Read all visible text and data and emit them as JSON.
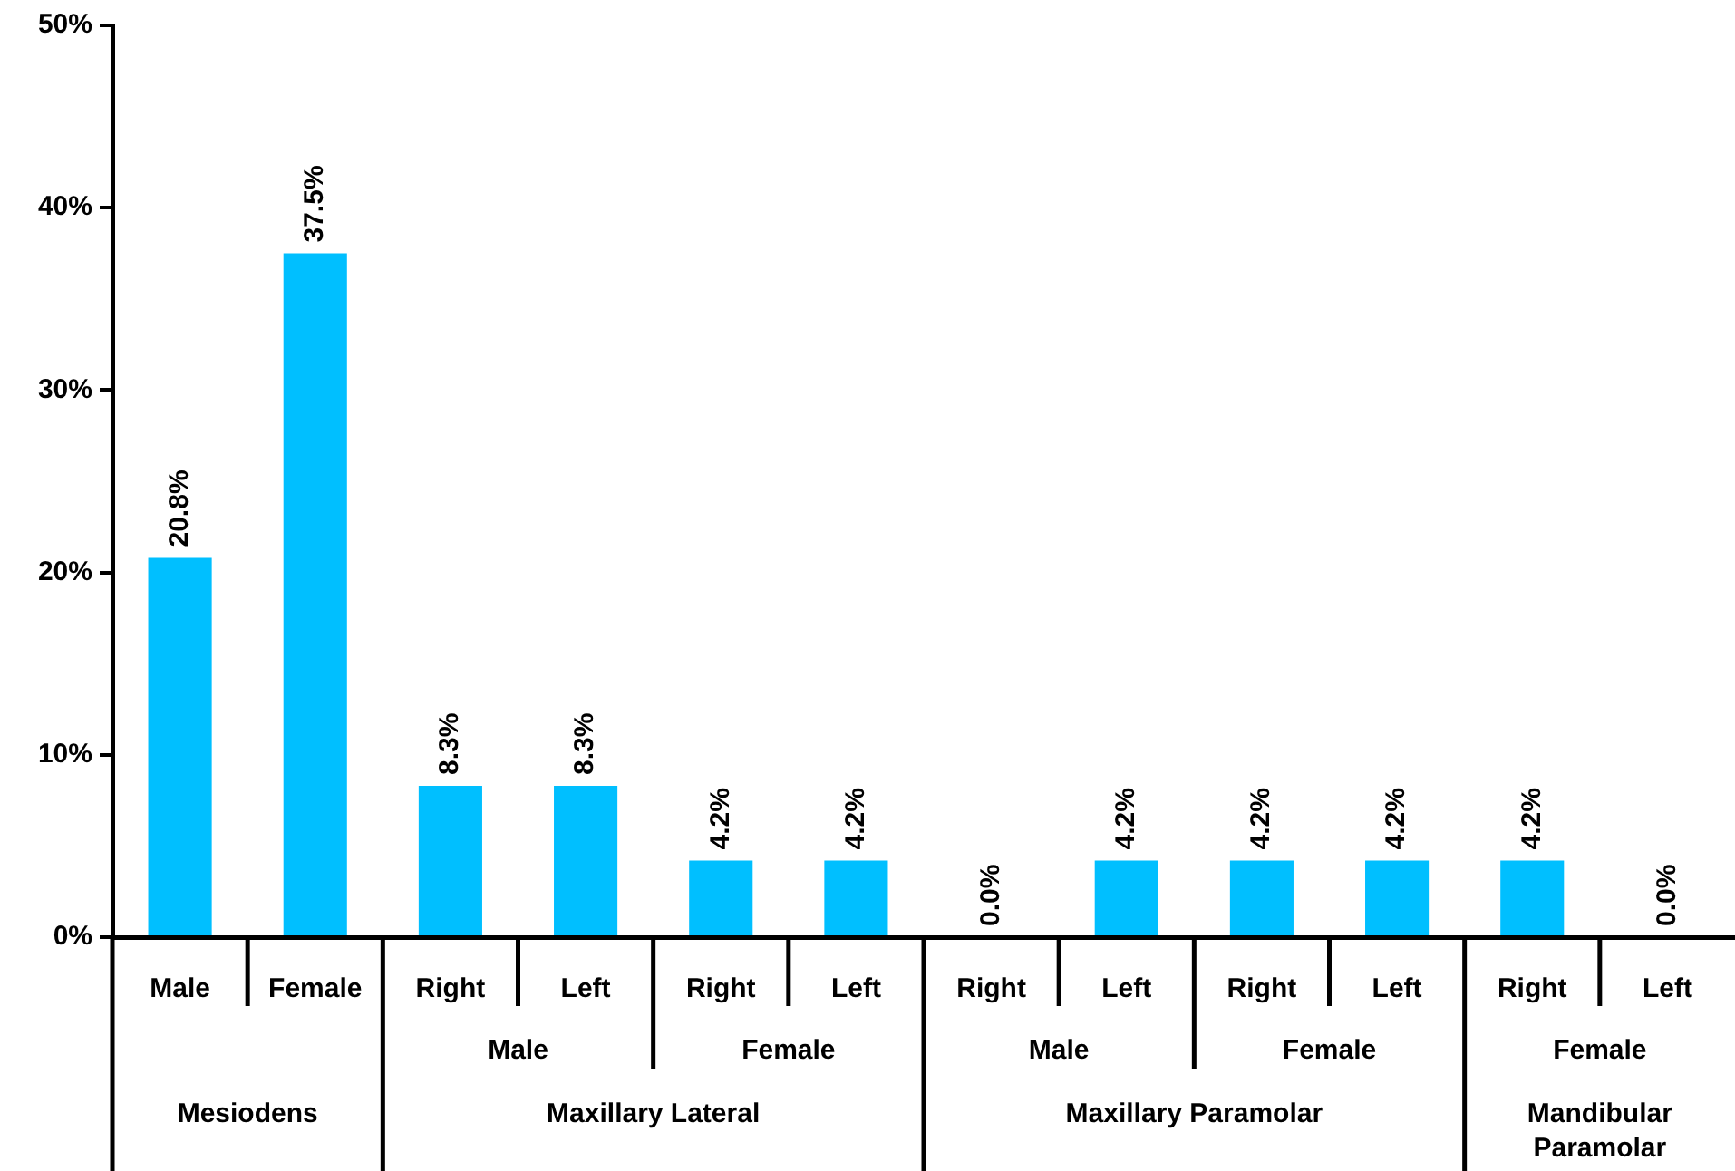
{
  "chart_data": {
    "type": "bar",
    "categories": [
      "Male",
      "Female",
      "Right",
      "Left",
      "Right",
      "Left",
      "Right",
      "Left",
      "Right",
      "Left",
      "Right",
      "Left"
    ],
    "values": [
      20.8,
      37.5,
      8.3,
      8.3,
      4.2,
      4.2,
      0.0,
      4.2,
      4.2,
      4.2,
      4.2,
      0.0
    ],
    "value_labels": [
      "20.8%",
      "37.5%",
      "8.3%",
      "8.3%",
      "4.2%",
      "4.2%",
      "0.0%",
      "4.2%",
      "4.2%",
      "4.2%",
      "4.2%",
      "0.0%"
    ],
    "color": "#00bfff",
    "ylim": [
      0,
      50
    ],
    "yticks": [
      {
        "value": 0,
        "label": "0%"
      },
      {
        "value": 10,
        "label": "10%"
      },
      {
        "value": 20,
        "label": "20%"
      },
      {
        "value": 30,
        "label": "30%"
      },
      {
        "value": 40,
        "label": "40%"
      },
      {
        "value": 50,
        "label": "50%"
      }
    ],
    "annotations": [
      "Male",
      "Female",
      "Male",
      "Female",
      "Female",
      "Mesiodens",
      "Maxillary Lateral",
      "Maxillary Paramolar",
      "Mandibular Paramolar"
    ],
    "grid": false,
    "legend": false
  }
}
